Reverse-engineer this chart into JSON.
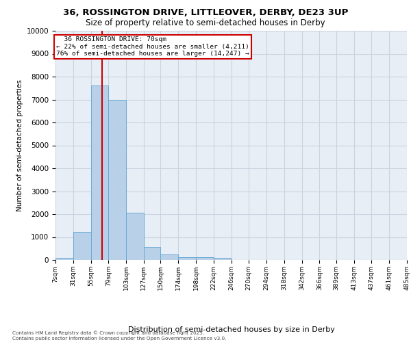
{
  "title_line1": "36, ROSSINGTON DRIVE, LITTLEOVER, DERBY, DE23 3UP",
  "title_line2": "Size of property relative to semi-detached houses in Derby",
  "xlabel": "Distribution of semi-detached houses by size in Derby",
  "ylabel": "Number of semi-detached properties",
  "property_label": "36 ROSSINGTON DRIVE: 70sqm",
  "smaller_pct": "22% of semi-detached houses are smaller (4,211)",
  "larger_pct": "76% of semi-detached houses are larger (14,247)",
  "property_sqm": 70,
  "bin_edges": [
    7,
    31,
    55,
    79,
    103,
    127,
    150,
    174,
    198,
    222,
    246,
    270,
    294,
    318,
    342,
    366,
    389,
    413,
    437,
    461,
    485
  ],
  "bar_heights": [
    80,
    1230,
    7600,
    7000,
    2050,
    580,
    250,
    130,
    115,
    95,
    0,
    0,
    0,
    0,
    0,
    0,
    0,
    0,
    0,
    0
  ],
  "bar_color": "#b8d0e8",
  "bar_edge_color": "#6aaad4",
  "red_line_color": "#cc0000",
  "annotation_box_color": "#cc0000",
  "bg_color": "#e8eef5",
  "grid_color": "#c8d4e0",
  "footer_text": "Contains HM Land Registry data © Crown copyright and database right 2025.\nContains public sector information licensed under the Open Government Licence v3.0.",
  "ylim": [
    0,
    10000
  ],
  "yticks": [
    0,
    1000,
    2000,
    3000,
    4000,
    5000,
    6000,
    7000,
    8000,
    9000,
    10000
  ]
}
